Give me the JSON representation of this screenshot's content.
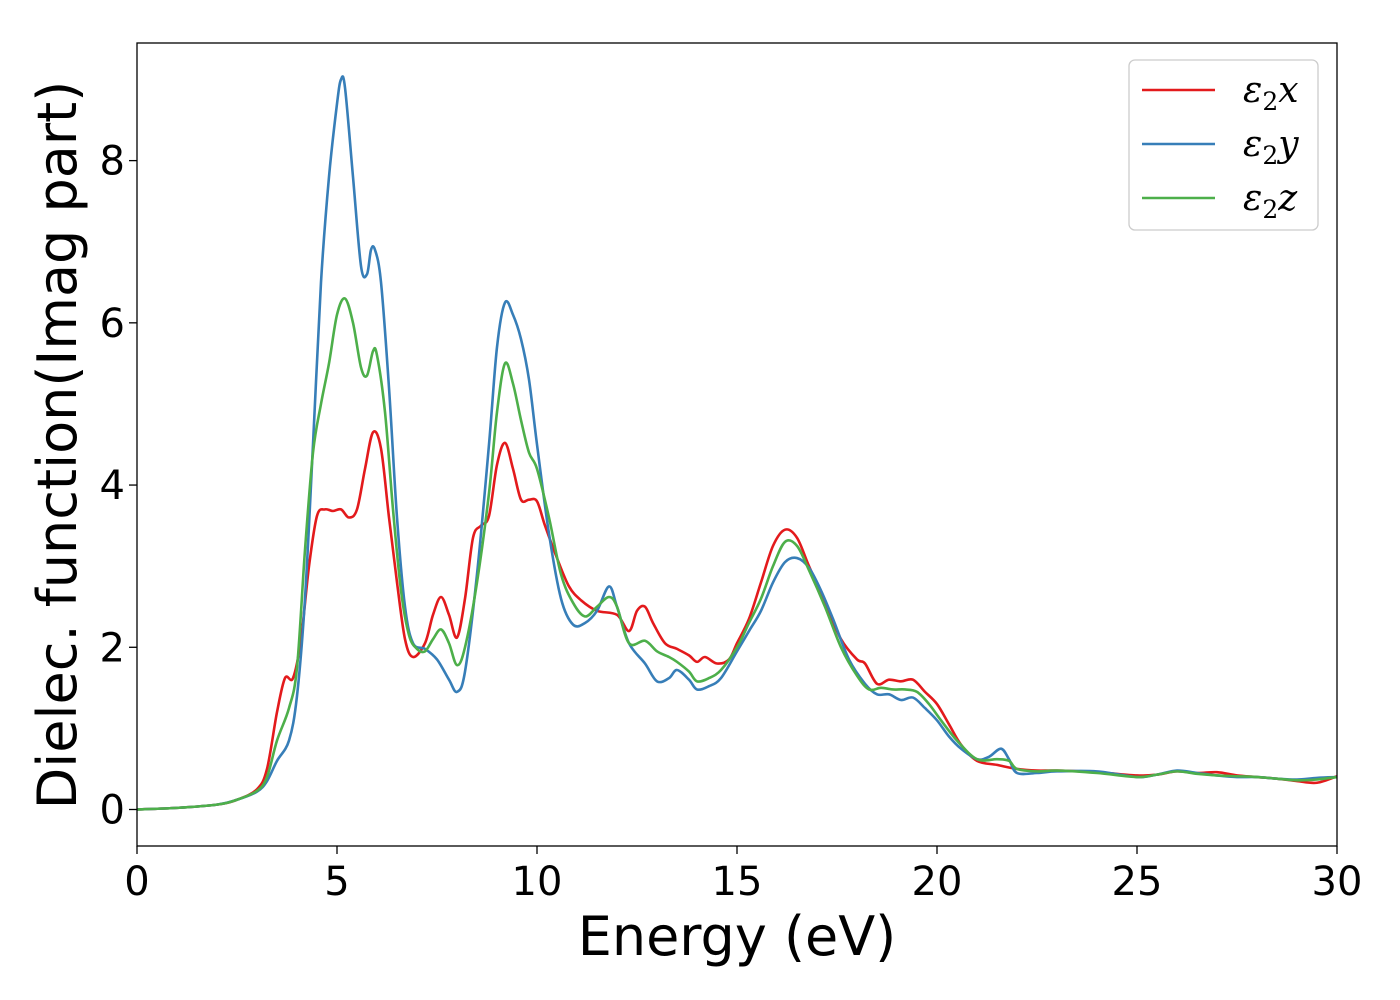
{
  "chart_data": {
    "type": "line",
    "xlabel": "Energy (eV)",
    "ylabel": "Dielec. function(Imag part)",
    "xlim": [
      0,
      30
    ],
    "ylim": [
      -0.45,
      9.45
    ],
    "xticks": [
      0,
      5,
      10,
      15,
      20,
      25,
      30
    ],
    "yticks": [
      0,
      2,
      4,
      6,
      8
    ],
    "grid": false,
    "legend_position": "top-right",
    "series": [
      {
        "name": "ε2x",
        "legend": {
          "symbol": "ε",
          "sub": "2",
          "var": "x"
        },
        "color": "#e31a1c",
        "points": [
          [
            0,
            0
          ],
          [
            1,
            0.02
          ],
          [
            2,
            0.06
          ],
          [
            2.5,
            0.12
          ],
          [
            3,
            0.25
          ],
          [
            3.25,
            0.5
          ],
          [
            3.5,
            1.2
          ],
          [
            3.7,
            1.62
          ],
          [
            3.9,
            1.62
          ],
          [
            4.1,
            2.1
          ],
          [
            4.3,
            3.0
          ],
          [
            4.5,
            3.62
          ],
          [
            4.7,
            3.7
          ],
          [
            4.9,
            3.68
          ],
          [
            5.1,
            3.7
          ],
          [
            5.3,
            3.6
          ],
          [
            5.5,
            3.7
          ],
          [
            5.7,
            4.2
          ],
          [
            5.9,
            4.65
          ],
          [
            6.1,
            4.45
          ],
          [
            6.3,
            3.6
          ],
          [
            6.5,
            2.8
          ],
          [
            6.7,
            2.1
          ],
          [
            6.9,
            1.88
          ],
          [
            7.2,
            2.05
          ],
          [
            7.4,
            2.4
          ],
          [
            7.6,
            2.62
          ],
          [
            7.8,
            2.4
          ],
          [
            8.0,
            2.12
          ],
          [
            8.2,
            2.6
          ],
          [
            8.4,
            3.35
          ],
          [
            8.6,
            3.5
          ],
          [
            8.8,
            3.62
          ],
          [
            9.0,
            4.25
          ],
          [
            9.2,
            4.52
          ],
          [
            9.4,
            4.2
          ],
          [
            9.6,
            3.82
          ],
          [
            9.8,
            3.82
          ],
          [
            10.0,
            3.8
          ],
          [
            10.2,
            3.5
          ],
          [
            10.5,
            3.1
          ],
          [
            10.8,
            2.75
          ],
          [
            11.1,
            2.58
          ],
          [
            11.5,
            2.45
          ],
          [
            12.0,
            2.4
          ],
          [
            12.3,
            2.2
          ],
          [
            12.5,
            2.45
          ],
          [
            12.7,
            2.5
          ],
          [
            12.9,
            2.3
          ],
          [
            13.2,
            2.05
          ],
          [
            13.5,
            1.98
          ],
          [
            13.8,
            1.9
          ],
          [
            14.0,
            1.82
          ],
          [
            14.2,
            1.88
          ],
          [
            14.5,
            1.8
          ],
          [
            14.8,
            1.85
          ],
          [
            15.0,
            2.05
          ],
          [
            15.3,
            2.35
          ],
          [
            15.6,
            2.8
          ],
          [
            15.9,
            3.25
          ],
          [
            16.2,
            3.45
          ],
          [
            16.5,
            3.35
          ],
          [
            16.8,
            3.0
          ],
          [
            17.2,
            2.55
          ],
          [
            17.6,
            2.1
          ],
          [
            18.0,
            1.85
          ],
          [
            18.2,
            1.8
          ],
          [
            18.5,
            1.55
          ],
          [
            18.8,
            1.6
          ],
          [
            19.1,
            1.58
          ],
          [
            19.4,
            1.6
          ],
          [
            19.7,
            1.45
          ],
          [
            20.0,
            1.3
          ],
          [
            20.3,
            1.05
          ],
          [
            20.6,
            0.8
          ],
          [
            21.0,
            0.6
          ],
          [
            21.5,
            0.55
          ],
          [
            22.0,
            0.5
          ],
          [
            22.5,
            0.48
          ],
          [
            23.0,
            0.48
          ],
          [
            24.0,
            0.46
          ],
          [
            25.0,
            0.42
          ],
          [
            25.5,
            0.43
          ],
          [
            26.0,
            0.47
          ],
          [
            26.5,
            0.45
          ],
          [
            27.0,
            0.46
          ],
          [
            27.5,
            0.42
          ],
          [
            28.0,
            0.4
          ],
          [
            28.5,
            0.38
          ],
          [
            29.0,
            0.35
          ],
          [
            29.5,
            0.33
          ],
          [
            30.0,
            0.41
          ]
        ]
      },
      {
        "name": "ε2y",
        "legend": {
          "symbol": "ε",
          "sub": "2",
          "var": "y"
        },
        "color": "#377eb8",
        "points": [
          [
            0,
            0
          ],
          [
            1,
            0.02
          ],
          [
            2,
            0.06
          ],
          [
            2.5,
            0.12
          ],
          [
            3,
            0.22
          ],
          [
            3.25,
            0.35
          ],
          [
            3.5,
            0.6
          ],
          [
            3.8,
            0.85
          ],
          [
            4.0,
            1.4
          ],
          [
            4.2,
            2.6
          ],
          [
            4.4,
            4.5
          ],
          [
            4.6,
            6.5
          ],
          [
            4.8,
            7.8
          ],
          [
            5.0,
            8.7
          ],
          [
            5.1,
            9.0
          ],
          [
            5.2,
            8.9
          ],
          [
            5.4,
            7.8
          ],
          [
            5.6,
            6.7
          ],
          [
            5.75,
            6.6
          ],
          [
            5.85,
            6.9
          ],
          [
            5.95,
            6.9
          ],
          [
            6.1,
            6.5
          ],
          [
            6.3,
            5.2
          ],
          [
            6.5,
            3.6
          ],
          [
            6.7,
            2.5
          ],
          [
            6.9,
            2.05
          ],
          [
            7.2,
            1.98
          ],
          [
            7.5,
            1.85
          ],
          [
            7.8,
            1.6
          ],
          [
            8.0,
            1.45
          ],
          [
            8.2,
            1.7
          ],
          [
            8.5,
            2.9
          ],
          [
            8.8,
            4.5
          ],
          [
            9.0,
            5.7
          ],
          [
            9.2,
            6.25
          ],
          [
            9.4,
            6.1
          ],
          [
            9.6,
            5.8
          ],
          [
            9.8,
            5.3
          ],
          [
            10.0,
            4.5
          ],
          [
            10.3,
            3.4
          ],
          [
            10.6,
            2.6
          ],
          [
            10.9,
            2.28
          ],
          [
            11.2,
            2.3
          ],
          [
            11.5,
            2.45
          ],
          [
            11.8,
            2.75
          ],
          [
            12.0,
            2.5
          ],
          [
            12.3,
            2.05
          ],
          [
            12.7,
            1.8
          ],
          [
            13.0,
            1.58
          ],
          [
            13.3,
            1.62
          ],
          [
            13.5,
            1.72
          ],
          [
            13.8,
            1.6
          ],
          [
            14.0,
            1.48
          ],
          [
            14.3,
            1.52
          ],
          [
            14.6,
            1.62
          ],
          [
            15.0,
            1.95
          ],
          [
            15.3,
            2.2
          ],
          [
            15.6,
            2.45
          ],
          [
            15.9,
            2.8
          ],
          [
            16.2,
            3.05
          ],
          [
            16.5,
            3.1
          ],
          [
            16.8,
            2.98
          ],
          [
            17.1,
            2.7
          ],
          [
            17.4,
            2.35
          ],
          [
            17.8,
            1.85
          ],
          [
            18.2,
            1.55
          ],
          [
            18.5,
            1.42
          ],
          [
            18.8,
            1.42
          ],
          [
            19.1,
            1.35
          ],
          [
            19.4,
            1.38
          ],
          [
            19.7,
            1.25
          ],
          [
            20.0,
            1.1
          ],
          [
            20.3,
            0.9
          ],
          [
            20.6,
            0.75
          ],
          [
            21.0,
            0.62
          ],
          [
            21.3,
            0.65
          ],
          [
            21.6,
            0.75
          ],
          [
            21.8,
            0.62
          ],
          [
            22.0,
            0.45
          ],
          [
            22.5,
            0.45
          ],
          [
            23.0,
            0.47
          ],
          [
            24.0,
            0.47
          ],
          [
            25.0,
            0.4
          ],
          [
            25.5,
            0.43
          ],
          [
            26.0,
            0.48
          ],
          [
            26.5,
            0.45
          ],
          [
            27.0,
            0.42
          ],
          [
            27.5,
            0.4
          ],
          [
            28.0,
            0.4
          ],
          [
            28.5,
            0.38
          ],
          [
            29.0,
            0.37
          ],
          [
            29.5,
            0.39
          ],
          [
            30.0,
            0.4
          ]
        ]
      },
      {
        "name": "ε2z",
        "legend": {
          "symbol": "ε",
          "sub": "2",
          "var": "z"
        },
        "color": "#4daf4a",
        "points": [
          [
            0,
            0
          ],
          [
            1,
            0.02
          ],
          [
            2,
            0.06
          ],
          [
            2.5,
            0.12
          ],
          [
            3,
            0.23
          ],
          [
            3.25,
            0.4
          ],
          [
            3.5,
            0.85
          ],
          [
            3.8,
            1.25
          ],
          [
            4.0,
            1.75
          ],
          [
            4.2,
            3.2
          ],
          [
            4.4,
            4.4
          ],
          [
            4.6,
            5.0
          ],
          [
            4.8,
            5.5
          ],
          [
            5.0,
            6.1
          ],
          [
            5.2,
            6.3
          ],
          [
            5.4,
            6.0
          ],
          [
            5.6,
            5.45
          ],
          [
            5.75,
            5.35
          ],
          [
            5.9,
            5.65
          ],
          [
            6.0,
            5.6
          ],
          [
            6.2,
            4.9
          ],
          [
            6.4,
            3.7
          ],
          [
            6.6,
            2.7
          ],
          [
            6.8,
            2.15
          ],
          [
            7.0,
            1.98
          ],
          [
            7.2,
            1.95
          ],
          [
            7.4,
            2.1
          ],
          [
            7.6,
            2.22
          ],
          [
            7.8,
            2.05
          ],
          [
            8.0,
            1.78
          ],
          [
            8.2,
            2.0
          ],
          [
            8.5,
            2.8
          ],
          [
            8.8,
            3.9
          ],
          [
            9.0,
            4.9
          ],
          [
            9.2,
            5.5
          ],
          [
            9.4,
            5.25
          ],
          [
            9.6,
            4.8
          ],
          [
            9.8,
            4.4
          ],
          [
            10.0,
            4.2
          ],
          [
            10.3,
            3.6
          ],
          [
            10.6,
            2.9
          ],
          [
            10.9,
            2.55
          ],
          [
            11.2,
            2.38
          ],
          [
            11.5,
            2.5
          ],
          [
            11.8,
            2.62
          ],
          [
            12.0,
            2.5
          ],
          [
            12.3,
            2.05
          ],
          [
            12.7,
            2.08
          ],
          [
            13.0,
            1.95
          ],
          [
            13.3,
            1.88
          ],
          [
            13.5,
            1.82
          ],
          [
            13.8,
            1.7
          ],
          [
            14.0,
            1.58
          ],
          [
            14.3,
            1.62
          ],
          [
            14.6,
            1.72
          ],
          [
            15.0,
            2.0
          ],
          [
            15.3,
            2.3
          ],
          [
            15.6,
            2.6
          ],
          [
            15.9,
            3.0
          ],
          [
            16.2,
            3.3
          ],
          [
            16.5,
            3.25
          ],
          [
            16.8,
            2.95
          ],
          [
            17.2,
            2.5
          ],
          [
            17.6,
            2.0
          ],
          [
            18.0,
            1.65
          ],
          [
            18.3,
            1.48
          ],
          [
            18.6,
            1.5
          ],
          [
            18.9,
            1.48
          ],
          [
            19.2,
            1.48
          ],
          [
            19.5,
            1.45
          ],
          [
            19.8,
            1.3
          ],
          [
            20.1,
            1.1
          ],
          [
            20.5,
            0.85
          ],
          [
            21.0,
            0.62
          ],
          [
            21.5,
            0.62
          ],
          [
            21.8,
            0.6
          ],
          [
            22.0,
            0.5
          ],
          [
            22.5,
            0.47
          ],
          [
            23.0,
            0.48
          ],
          [
            24.0,
            0.45
          ],
          [
            25.0,
            0.4
          ],
          [
            25.5,
            0.43
          ],
          [
            26.0,
            0.47
          ],
          [
            26.5,
            0.44
          ],
          [
            27.0,
            0.42
          ],
          [
            27.5,
            0.41
          ],
          [
            28.0,
            0.4
          ],
          [
            28.5,
            0.38
          ],
          [
            29.0,
            0.36
          ],
          [
            29.5,
            0.37
          ],
          [
            30.0,
            0.4
          ]
        ]
      }
    ]
  }
}
